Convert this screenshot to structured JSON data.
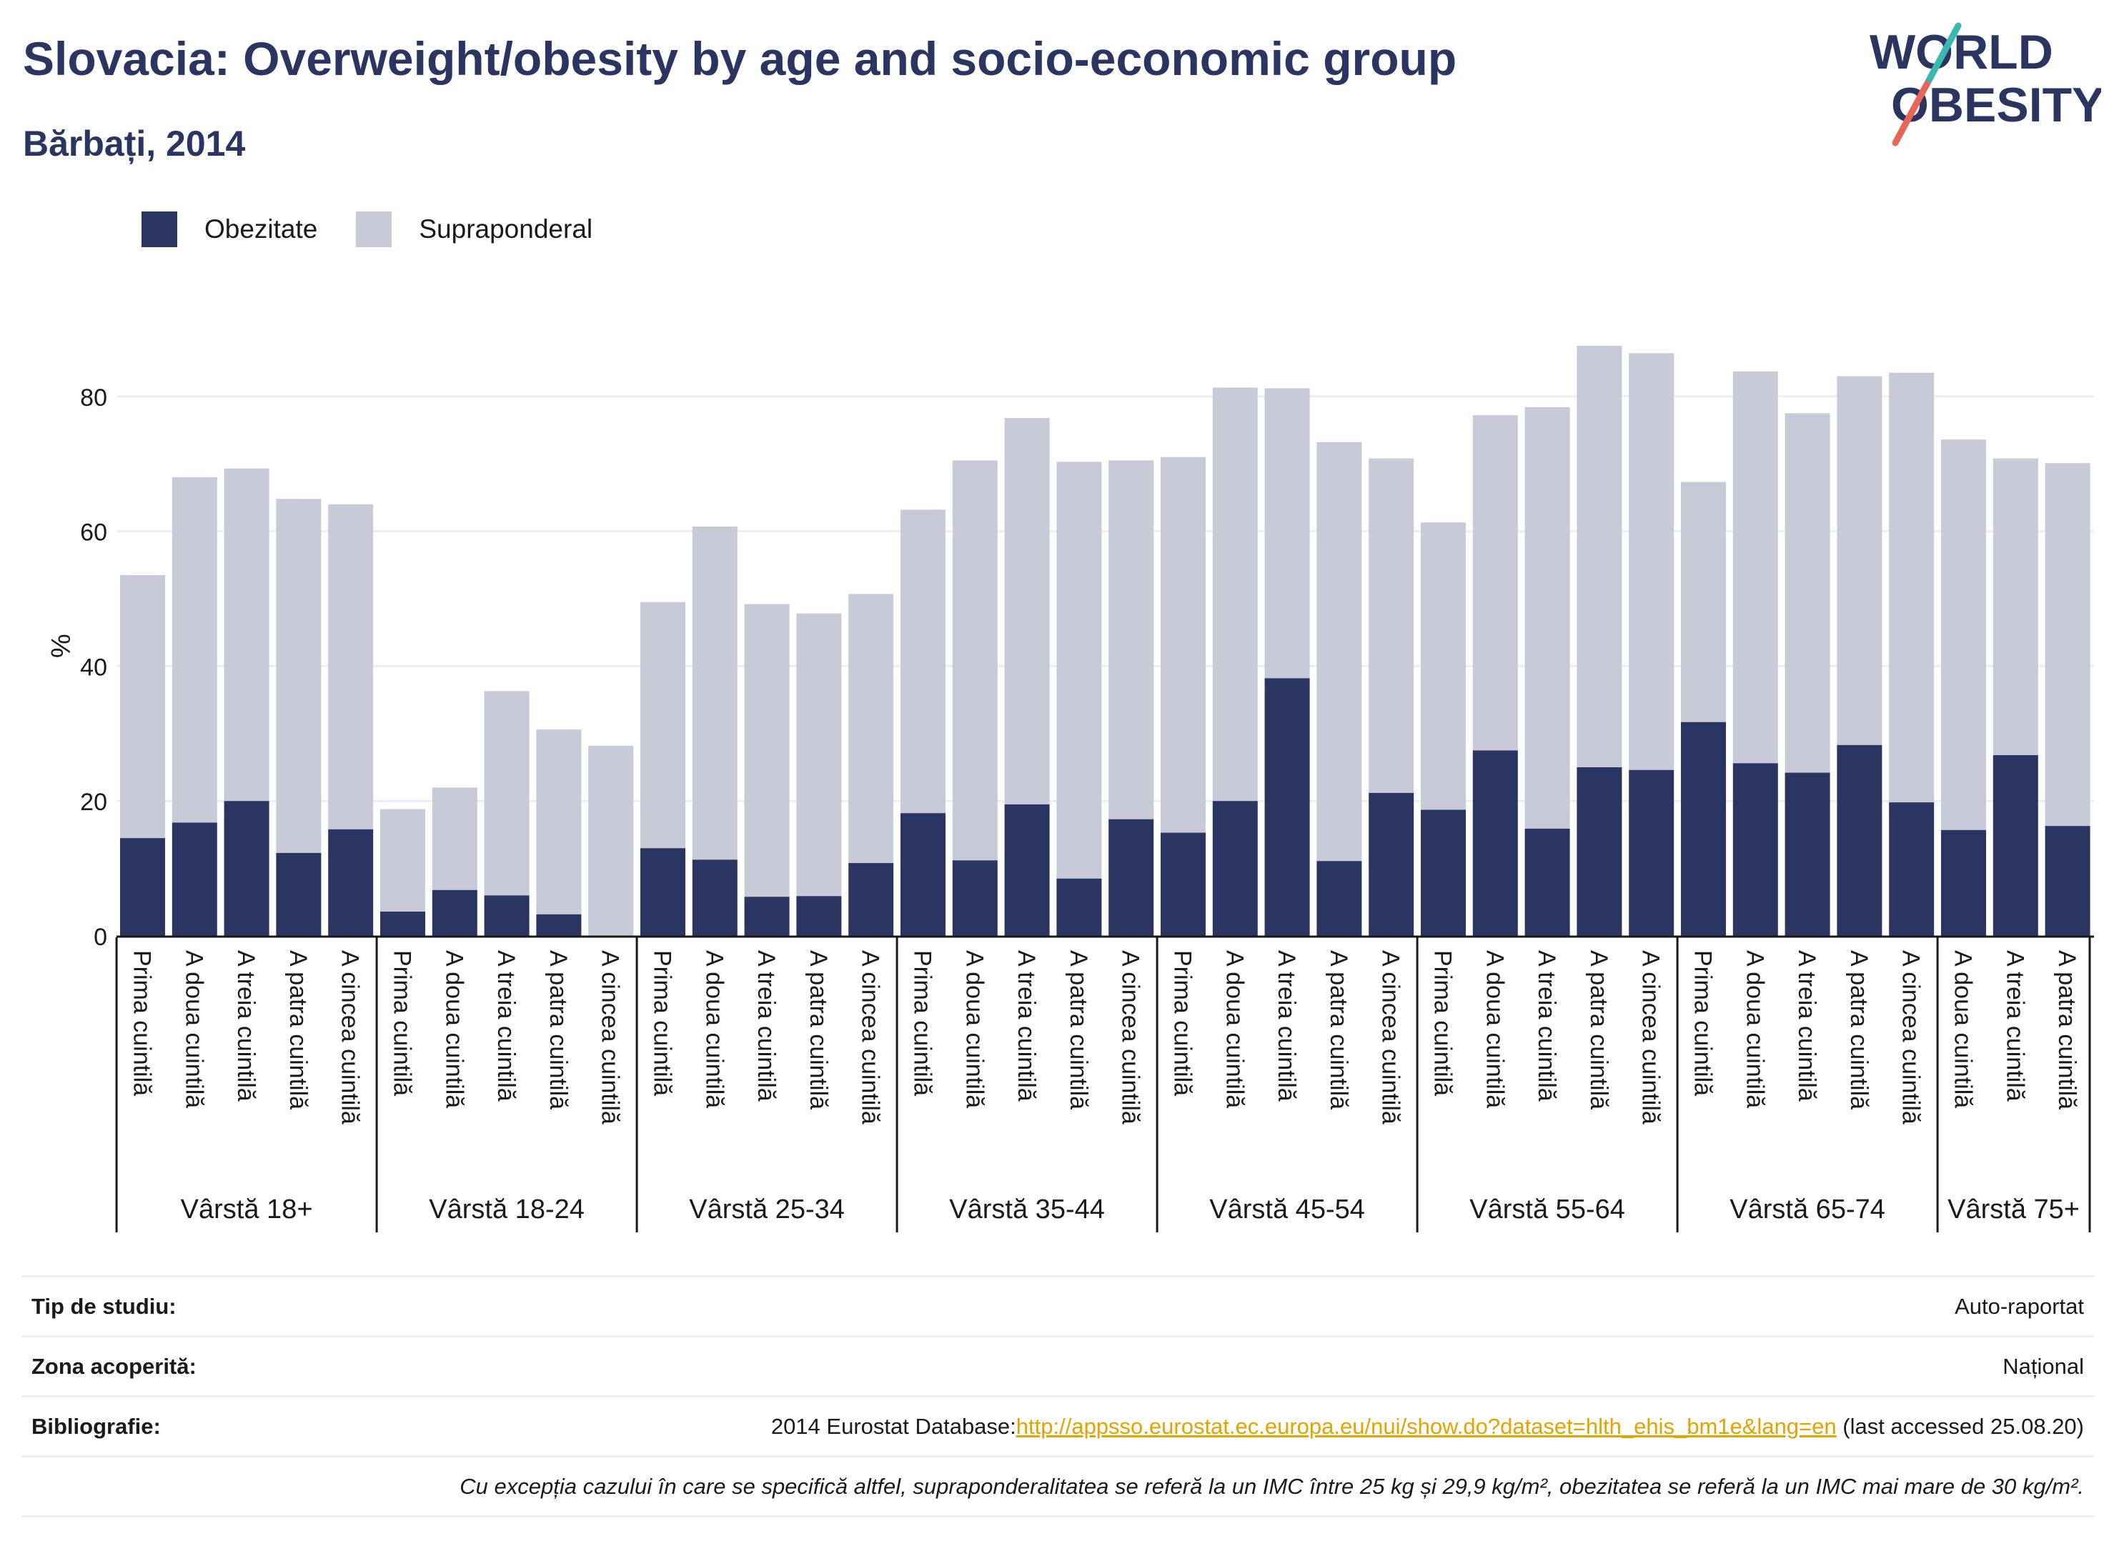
{
  "header": {
    "title": "Slovacia: Overweight/obesity by age and socio-economic group",
    "subtitle": "Bărbați, 2014"
  },
  "logo": {
    "line1": "WORLD",
    "line2": "OBESITY"
  },
  "legend": [
    {
      "label": "Obezitate",
      "color": "#2b3561"
    },
    {
      "label": "Supraponderal",
      "color": "#c8cad7"
    }
  ],
  "chart_data": {
    "type": "bar",
    "stacked": true,
    "ylabel": "%",
    "ylim": [
      0,
      95
    ],
    "yticks": [
      0,
      20,
      40,
      60,
      80
    ],
    "grid": true,
    "legend_position": "top-left",
    "groups": [
      {
        "label": "Vârstă 18+",
        "bars": [
          {
            "category": "Prima cuintilă",
            "obesity": 14.5,
            "total": 53.5
          },
          {
            "category": "A doua cuintilă",
            "obesity": 16.8,
            "total": 68.0
          },
          {
            "category": "A treia cuintilă",
            "obesity": 20.0,
            "total": 69.3
          },
          {
            "category": "A patra cuintilă",
            "obesity": 12.3,
            "total": 64.8
          },
          {
            "category": "A cincea cuintilă",
            "obesity": 15.8,
            "total": 64.0
          }
        ]
      },
      {
        "label": "Vârstă 18-24",
        "bars": [
          {
            "category": "Prima cuintilă",
            "obesity": 3.6,
            "total": 18.8
          },
          {
            "category": "A doua cuintilă",
            "obesity": 6.8,
            "total": 22.0
          },
          {
            "category": "A treia cuintilă",
            "obesity": 6.0,
            "total": 36.3
          },
          {
            "category": "A patra cuintilă",
            "obesity": 3.2,
            "total": 30.6
          },
          {
            "category": "A cincea cuintilă",
            "obesity": 0.0,
            "total": 28.2
          }
        ]
      },
      {
        "label": "Vârstă 25-34",
        "bars": [
          {
            "category": "Prima cuintilă",
            "obesity": 13.0,
            "total": 49.5
          },
          {
            "category": "A doua cuintilă",
            "obesity": 11.3,
            "total": 60.7
          },
          {
            "category": "A treia cuintilă",
            "obesity": 5.8,
            "total": 49.2
          },
          {
            "category": "A patra cuintilă",
            "obesity": 5.9,
            "total": 47.8
          },
          {
            "category": "A cincea cuintilă",
            "obesity": 10.8,
            "total": 50.7
          }
        ]
      },
      {
        "label": "Vârstă 35-44",
        "bars": [
          {
            "category": "Prima cuintilă",
            "obesity": 18.2,
            "total": 63.2
          },
          {
            "category": "A doua cuintilă",
            "obesity": 11.2,
            "total": 70.5
          },
          {
            "category": "A treia cuintilă",
            "obesity": 19.5,
            "total": 76.8
          },
          {
            "category": "A patra cuintilă",
            "obesity": 8.5,
            "total": 70.3
          },
          {
            "category": "A cincea cuintilă",
            "obesity": 17.3,
            "total": 70.5
          }
        ]
      },
      {
        "label": "Vârstă 45-54",
        "bars": [
          {
            "category": "Prima cuintilă",
            "obesity": 15.3,
            "total": 71.0
          },
          {
            "category": "A doua cuintilă",
            "obesity": 20.0,
            "total": 81.3
          },
          {
            "category": "A treia cuintilă",
            "obesity": 38.2,
            "total": 81.2
          },
          {
            "category": "A patra cuintilă",
            "obesity": 11.1,
            "total": 73.2
          },
          {
            "category": "A cincea cuintilă",
            "obesity": 21.2,
            "total": 70.8
          }
        ]
      },
      {
        "label": "Vârstă 55-64",
        "bars": [
          {
            "category": "Prima cuintilă",
            "obesity": 18.7,
            "total": 61.3
          },
          {
            "category": "A doua cuintilă",
            "obesity": 27.5,
            "total": 77.2
          },
          {
            "category": "A treia cuintilă",
            "obesity": 15.9,
            "total": 78.4
          },
          {
            "category": "A patra cuintilă",
            "obesity": 25.0,
            "total": 87.5
          },
          {
            "category": "A cincea cuintilă",
            "obesity": 24.6,
            "total": 86.4
          }
        ]
      },
      {
        "label": "Vârstă 65-74",
        "bars": [
          {
            "category": "Prima cuintilă",
            "obesity": 31.7,
            "total": 67.3
          },
          {
            "category": "A doua cuintilă",
            "obesity": 25.6,
            "total": 83.7
          },
          {
            "category": "A treia cuintilă",
            "obesity": 24.2,
            "total": 77.5
          },
          {
            "category": "A patra cuintilă",
            "obesity": 28.3,
            "total": 83.0
          },
          {
            "category": "A cincea cuintilă",
            "obesity": 19.8,
            "total": 83.5
          }
        ]
      },
      {
        "label": "Vârstă 75+",
        "bars": [
          {
            "category": "A doua cuintilă",
            "obesity": 15.7,
            "total": 73.6
          },
          {
            "category": "A treia cuintilă",
            "obesity": 26.8,
            "total": 70.8
          },
          {
            "category": "A patra cuintilă",
            "obesity": 16.3,
            "total": 70.1
          }
        ]
      }
    ]
  },
  "footer": {
    "study_type_label": "Tip de studiu:",
    "study_type_value": "Auto-raportat",
    "coverage_label": "Zona acoperită:",
    "coverage_value": "Național",
    "bibliography_label": "Bibliografie:",
    "bibliography_prefix": "2014 Eurostat Database:",
    "bibliography_link": "http://appsso.eurostat.ec.europa.eu/nui/show.do?dataset=hlth_ehis_bm1e&lang=en",
    "bibliography_suffix": " (last accessed 25.08.20)",
    "note": "Cu excepția cazului în care se specifică altfel, supraponderalitatea se referă la un IMC între 25 kg și 29,9 kg/m², obezitatea se referă la un IMC mai mare de 30 kg/m²."
  }
}
